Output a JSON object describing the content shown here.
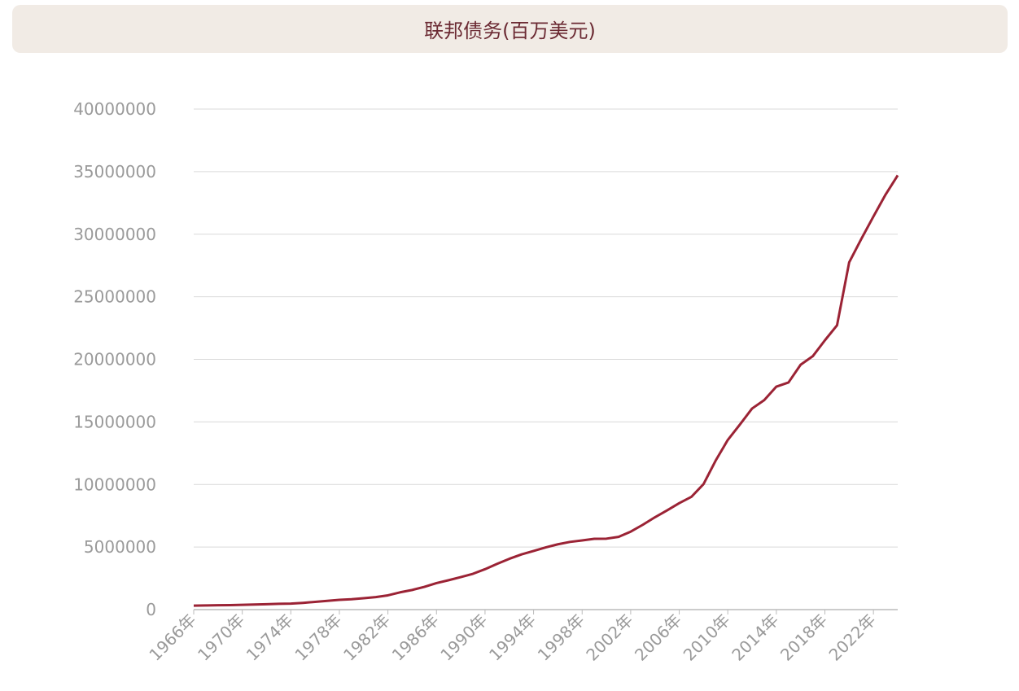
{
  "chart_data": {
    "type": "line",
    "title": "联邦债务(百万美元)",
    "x": [
      1966,
      1967,
      1968,
      1969,
      1970,
      1971,
      1972,
      1973,
      1974,
      1975,
      1976,
      1977,
      1978,
      1979,
      1980,
      1981,
      1982,
      1983,
      1984,
      1985,
      1986,
      1987,
      1988,
      1989,
      1990,
      1991,
      1992,
      1993,
      1994,
      1995,
      1996,
      1997,
      1998,
      1999,
      2000,
      2001,
      2002,
      2003,
      2004,
      2005,
      2006,
      2007,
      2008,
      2009,
      2010,
      2011,
      2012,
      2013,
      2014,
      2015,
      2016,
      2017,
      2018,
      2019,
      2020,
      2021,
      2022,
      2023,
      2024
    ],
    "series": [
      {
        "name": "联邦债务",
        "color": "#9b2335",
        "values": [
          320000,
          330000,
          350000,
          360000,
          380000,
          410000,
          430000,
          460000,
          480000,
          540000,
          620000,
          700000,
          780000,
          830000,
          910000,
          1000000,
          1140000,
          1380000,
          1570000,
          1820000,
          2120000,
          2350000,
          2600000,
          2860000,
          3230000,
          3660000,
          4060000,
          4410000,
          4690000,
          4970000,
          5220000,
          5410000,
          5530000,
          5660000,
          5670000,
          5810000,
          6230000,
          6780000,
          7380000,
          7930000,
          8510000,
          9010000,
          10030000,
          11910000,
          13560000,
          14790000,
          16070000,
          16740000,
          17820000,
          18150000,
          19570000,
          20250000,
          21520000,
          22720000,
          27750000,
          29620000,
          31420000,
          33170000,
          34700000
        ]
      }
    ],
    "xlim": [
      1966,
      2024
    ],
    "xticks": [
      {
        "value": 1966,
        "label": "1966年"
      },
      {
        "value": 1970,
        "label": "1970年"
      },
      {
        "value": 1974,
        "label": "1974年"
      },
      {
        "value": 1978,
        "label": "1978年"
      },
      {
        "value": 1982,
        "label": "1982年"
      },
      {
        "value": 1986,
        "label": "1986年"
      },
      {
        "value": 1990,
        "label": "1990年"
      },
      {
        "value": 1994,
        "label": "1994年"
      },
      {
        "value": 1998,
        "label": "1998年"
      },
      {
        "value": 2002,
        "label": "2002年"
      },
      {
        "value": 2006,
        "label": "2006年"
      },
      {
        "value": 2010,
        "label": "2010年"
      },
      {
        "value": 2014,
        "label": "2014年"
      },
      {
        "value": 2018,
        "label": "2018年"
      },
      {
        "value": 2022,
        "label": "2022年"
      }
    ],
    "ylim": [
      0,
      40000000
    ],
    "yticks": [
      0,
      5000000,
      10000000,
      15000000,
      20000000,
      25000000,
      30000000,
      35000000,
      40000000
    ],
    "grid": true
  }
}
